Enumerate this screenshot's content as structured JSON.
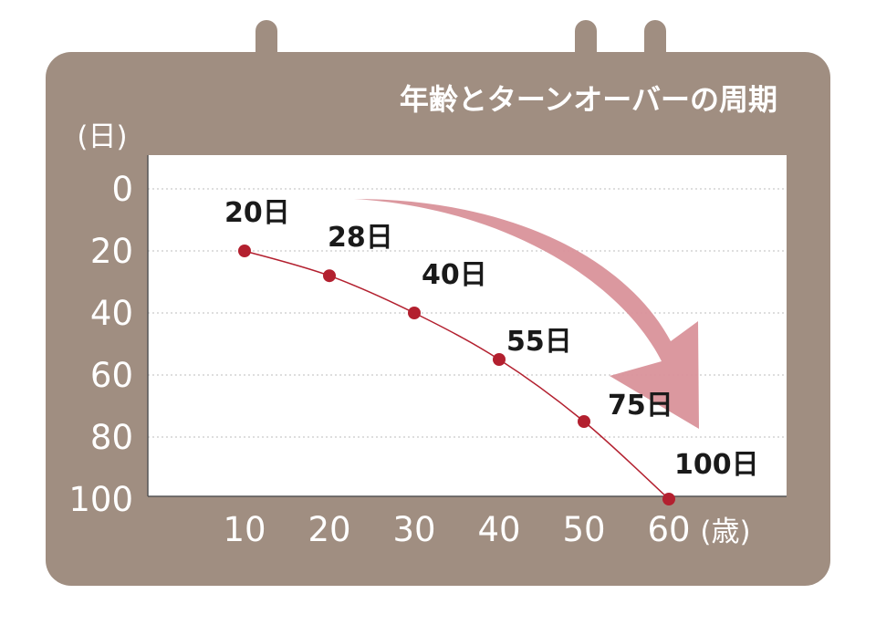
{
  "title": "年齢とターンオーバーの周期",
  "colors": {
    "frame": "#a08e81",
    "plot_bg": "#ffffff",
    "line": "#b3202f",
    "point": "#b3202f",
    "trend_arrow": "#d9929a",
    "text_on_frame": "#ffffff",
    "data_label": "#1a1a1a"
  },
  "chart_data": {
    "type": "line",
    "title": "年齢とターンオーバーの周期",
    "xlabel": "(歳)",
    "ylabel": "(日)",
    "x": [
      10,
      20,
      30,
      40,
      50,
      60
    ],
    "series": [
      {
        "values": [
          20,
          28,
          40,
          55,
          75,
          100
        ],
        "labels": [
          "20日",
          "28日",
          "40日",
          "55日",
          "75日",
          "100日"
        ]
      }
    ],
    "x_ticks": [
      "10",
      "20",
      "30",
      "40",
      "50",
      "60"
    ],
    "y_ticks": [
      "0",
      "20",
      "40",
      "60",
      "80",
      "100"
    ],
    "ylim": [
      0,
      100
    ],
    "y_inverted": true,
    "grid": "horizontal dotted",
    "annotation": "downward trend arrow"
  }
}
